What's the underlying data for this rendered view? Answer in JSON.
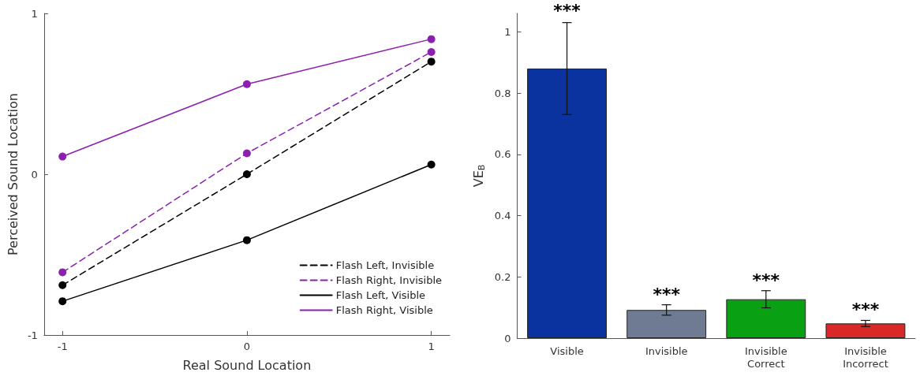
{
  "chart_data": [
    {
      "type": "line",
      "xlabel": "Real Sound Location",
      "ylabel": "Perceived Sound Location",
      "x": [
        -1,
        0,
        1
      ],
      "xlim": [
        -1.1,
        1.1
      ],
      "xticks": [
        -1,
        0,
        1
      ],
      "ylim": [
        -1,
        1
      ],
      "yticks": [
        -1,
        0,
        1
      ],
      "grid": false,
      "legend": "bottom right",
      "marker": "circle",
      "series": [
        {
          "name": "Flash Left, Invisible",
          "color": "#000000",
          "line_style": "dashed",
          "values": [
            -0.69,
            0.0,
            0.7
          ]
        },
        {
          "name": "Flash Right, Invisible",
          "color": "#8a1fb0",
          "line_style": "dashed",
          "values": [
            -0.61,
            0.13,
            0.76
          ]
        },
        {
          "name": "Flash Left, Visible",
          "color": "#000000",
          "line_style": "solid",
          "values": [
            -0.79,
            -0.41,
            0.06
          ]
        },
        {
          "name": "Flash Right, Visible",
          "color": "#8a1fb0",
          "line_style": "solid",
          "values": [
            0.11,
            0.56,
            0.84
          ]
        }
      ]
    },
    {
      "type": "bar",
      "ylabel": "VE$_{B}$",
      "categories": [
        "Visible",
        "Invisible",
        "Invisible\nCorrect",
        "Invisible\nIncorrect"
      ],
      "values": [
        0.88,
        0.092,
        0.127,
        0.048
      ],
      "colors": [
        "#0a33a0",
        "#6e7b92",
        "#0aa014",
        "#d92828"
      ],
      "errors": [
        0.15,
        0.017,
        0.028,
        0.01
      ],
      "ylim": [
        0,
        1.06
      ],
      "yticks": [
        0,
        0.2,
        0.4,
        0.6,
        0.8,
        1
      ],
      "grid": false,
      "annotations": [
        {
          "text": "***",
          "x": "Visible",
          "y": 1.04
        },
        {
          "text": "***",
          "x": "Invisible",
          "y": 0.115
        },
        {
          "text": "***",
          "x": "Invisible\nCorrect",
          "y": 0.16
        },
        {
          "text": "***",
          "x": "Invisible\nIncorrect",
          "y": 0.065
        }
      ]
    }
  ]
}
